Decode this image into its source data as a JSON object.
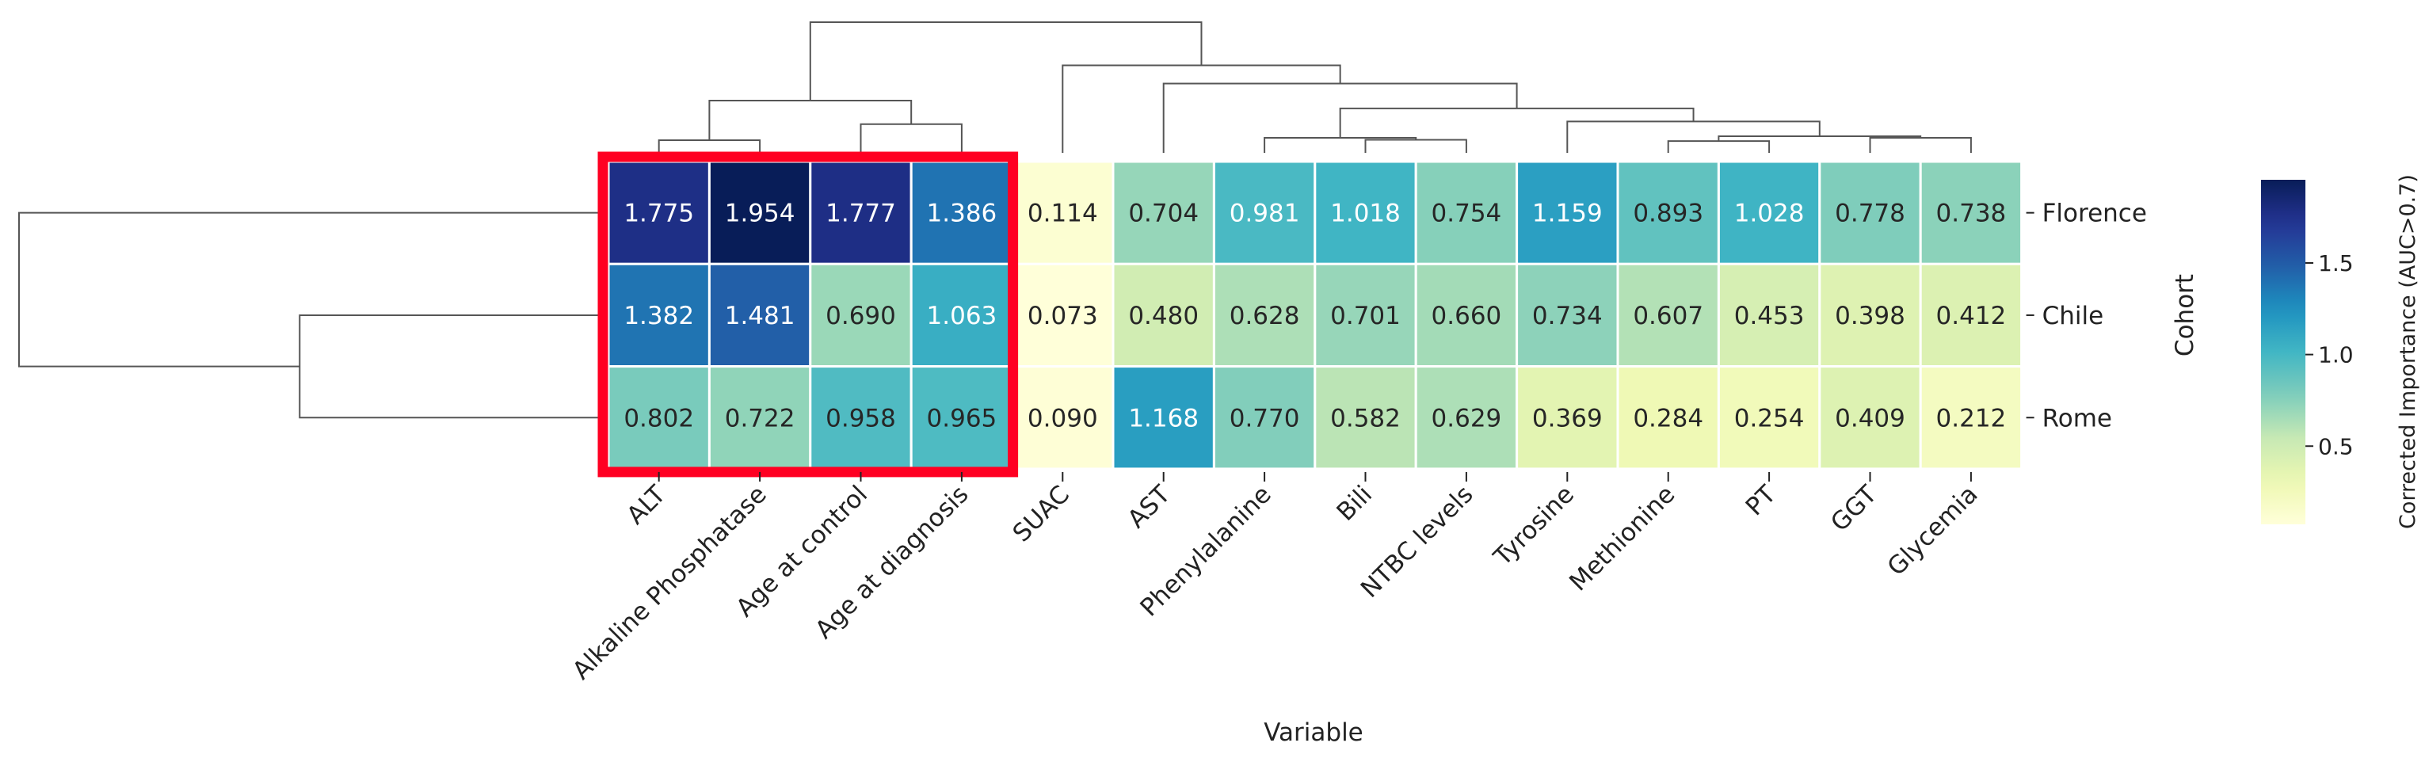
{
  "chart_data": {
    "type": "heatmap",
    "xlabel": "Variable",
    "ylabel": "Cohort",
    "colorbar_label": "Corrected Importance (AUC>0.7)",
    "colormap": "YlGnBu",
    "colorbar_range": [
      0.073,
      1.954
    ],
    "colorbar_ticks": [
      "0.5",
      "1.0",
      "1.5"
    ],
    "columns": [
      "ALT",
      "Alkaline Phosphatase",
      "Age at control",
      "Age at diagnosis",
      "SUAC",
      "AST",
      "Phenylalanine",
      "Bili",
      "NTBC levels",
      "Tyrosine",
      "Methionine",
      "PT",
      "GGT",
      "Glycemia"
    ],
    "rows": [
      "Florence",
      "Chile",
      "Rome"
    ],
    "values": [
      [
        1.775,
        1.954,
        1.777,
        1.386,
        0.114,
        0.704,
        0.981,
        1.018,
        0.754,
        1.159,
        0.893,
        1.028,
        0.778,
        0.738
      ],
      [
        1.382,
        1.481,
        0.69,
        1.063,
        0.073,
        0.48,
        0.628,
        0.701,
        0.66,
        0.734,
        0.607,
        0.453,
        0.398,
        0.412
      ],
      [
        0.802,
        0.722,
        0.958,
        0.965,
        0.09,
        1.168,
        0.77,
        0.582,
        0.629,
        0.369,
        0.284,
        0.254,
        0.409,
        0.212
      ]
    ],
    "value_labels": [
      [
        "1.775",
        "1.954",
        "1.777",
        "1.386",
        "0.114",
        "0.704",
        "0.981",
        "1.018",
        "0.754",
        "1.159",
        "0.893",
        "1.028",
        "0.778",
        "0.738"
      ],
      [
        "1.382",
        "1.481",
        "0.690",
        "1.063",
        "0.073",
        "0.480",
        "0.628",
        "0.701",
        "0.660",
        "0.734",
        "0.607",
        "0.453",
        "0.398",
        "0.412"
      ],
      [
        "0.802",
        "0.722",
        "0.958",
        "0.965",
        "0.090",
        "1.168",
        "0.770",
        "0.582",
        "0.629",
        "0.369",
        "0.284",
        "0.254",
        "0.409",
        "0.212"
      ]
    ],
    "column_dendrogram_relative": [
      [
        0,
        1,
        0.097
      ],
      [
        2,
        3,
        0.22
      ],
      [
        14,
        15,
        0.4
      ],
      [
        7,
        8,
        0.1
      ],
      [
        6,
        17,
        0.115
      ],
      [
        10,
        11,
        0.09
      ],
      [
        12,
        13,
        0.115
      ],
      [
        19,
        20,
        0.127
      ],
      [
        9,
        21,
        0.24
      ],
      [
        18,
        22,
        0.34
      ],
      [
        5,
        23,
        0.53
      ],
      [
        4,
        24,
        0.67
      ],
      [
        16,
        25,
        1.0
      ]
    ],
    "row_dendrogram_relative": [
      [
        1,
        2,
        0.516
      ],
      [
        0,
        3,
        1.0
      ]
    ],
    "highlight": {
      "columns": [
        "ALT",
        "Alkaline Phosphatase",
        "Age at control",
        "Age at diagnosis"
      ],
      "color": "#ff0022"
    },
    "colors": {
      "cell_border": "#ffffff",
      "dendrogram": "#555555"
    }
  }
}
